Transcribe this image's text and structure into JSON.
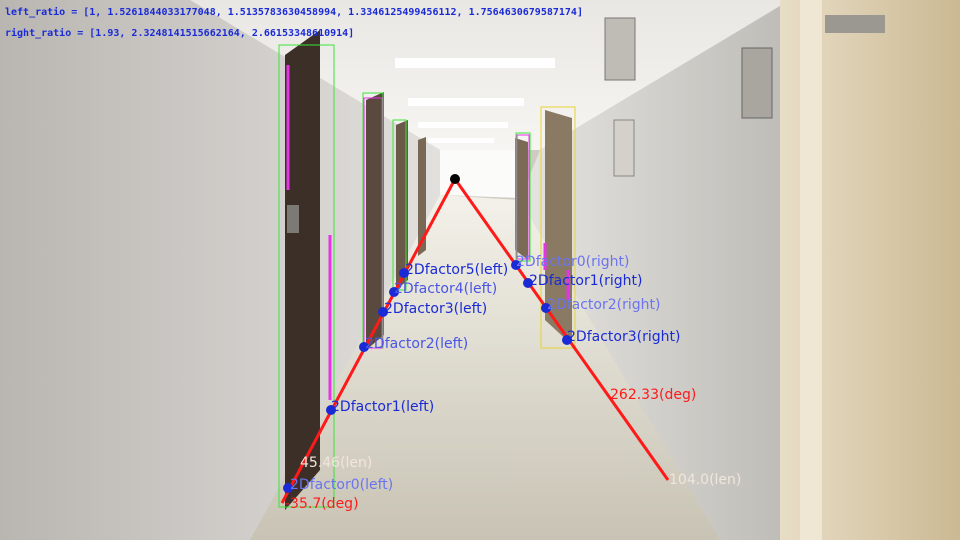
{
  "header": {
    "left_ratio": "left_ratio = [1, 1.5261844033177048, 1.5135783630458994, 1.3346125499456112, 1.7564630679587174]",
    "right_ratio": "right_ratio = [1.93, 2.3248141515662164, 2.66153348610914]"
  },
  "left_factors": [
    "2Dfactor0(left)",
    "2Dfactor1(left)",
    "2Dfactor2(left)",
    "2Dfactor3(left)",
    "2Dfactor4(left)",
    "2Dfactor5(left)"
  ],
  "right_factors": [
    "2Dfactor0(right)",
    "2Dfactor1(right)",
    "2Dfactor2(right)",
    "2Dfactor3(right)"
  ],
  "measurements": {
    "left_len": "45.46(len)",
    "left_deg": "-35.7(deg)",
    "right_deg": "262.33(deg)",
    "right_len": "104.0(len)"
  },
  "colors": {
    "trajectory": "#ff1a1a",
    "factor_point": "#1a2bd6",
    "factor_text": "#1a2bd6",
    "box_green": "#39e639",
    "box_magenta": "#e633e6",
    "box_yellow": "#e6d433",
    "vanishing_point": "#000000"
  }
}
